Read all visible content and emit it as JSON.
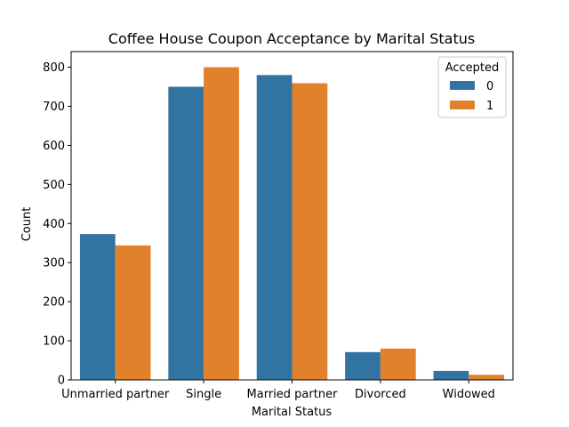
{
  "chart_data": {
    "type": "bar",
    "title": "Coffee House Coupon Acceptance by Marital Status",
    "xlabel": "Marital Status",
    "ylabel": "Count",
    "categories": [
      "Unmarried partner",
      "Single",
      "Married partner",
      "Divorced",
      "Widowed"
    ],
    "series": [
      {
        "name": "0",
        "color": "#3274a1",
        "values": [
          373,
          750,
          780,
          71,
          23
        ]
      },
      {
        "name": "1",
        "color": "#e1812c",
        "values": [
          344,
          800,
          759,
          80,
          13
        ]
      }
    ],
    "ylim": [
      0,
      840
    ],
    "yticks": [
      0,
      100,
      200,
      300,
      400,
      500,
      600,
      700,
      800
    ],
    "legend": {
      "title": "Accepted",
      "placement": "top-right"
    },
    "grid": false
  }
}
